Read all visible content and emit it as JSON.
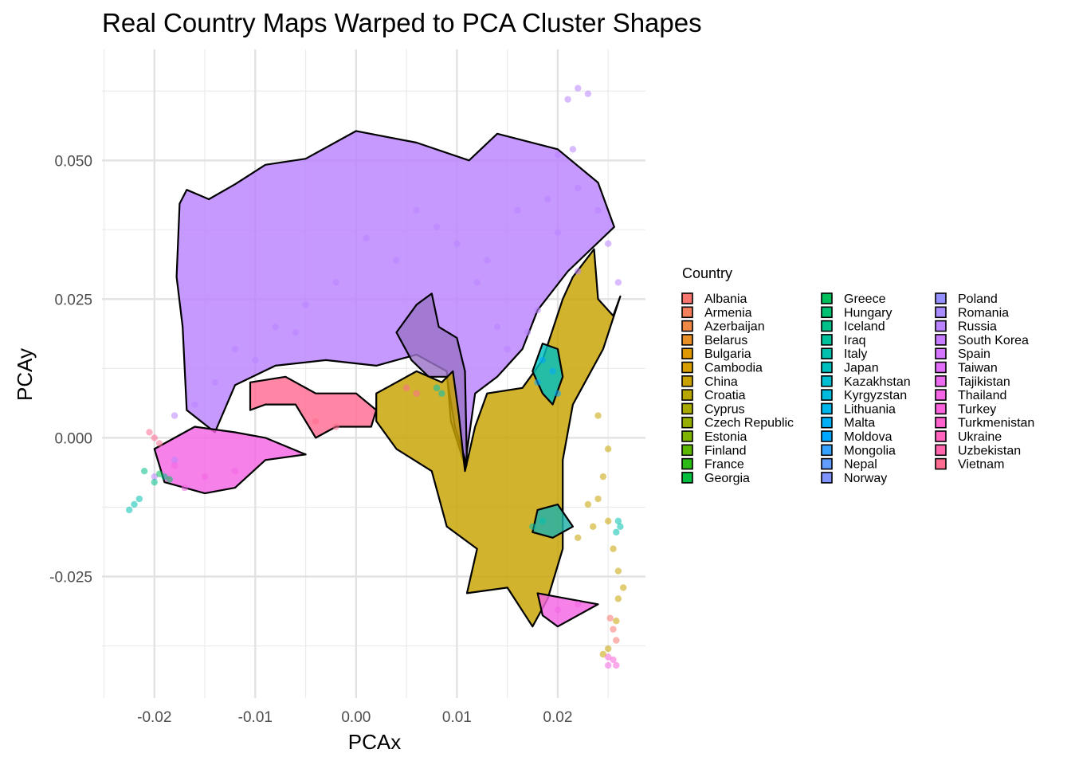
{
  "chart_data": {
    "type": "scatter",
    "title": "Real Country Maps Warped to PCA Cluster Shapes",
    "xlabel": "PCAx",
    "ylabel": "PCAy",
    "xlim": [
      -0.0252,
      0.0287
    ],
    "ylim": [
      -0.0469,
      0.07
    ],
    "x_ticks": [
      -0.02,
      -0.01,
      0.0,
      0.01,
      0.02
    ],
    "x_tick_labels": [
      "-0.02",
      "-0.01",
      "0.00",
      "0.01",
      "0.02"
    ],
    "y_ticks": [
      -0.025,
      0.0,
      0.025,
      0.05
    ],
    "y_tick_labels": [
      "-0.025",
      "0.000",
      "0.025",
      "0.050"
    ],
    "grid": true,
    "legend": {
      "title": "Country",
      "placement": "right",
      "columns": 3,
      "entries": [
        {
          "name": "Albania",
          "color": "#F8766D"
        },
        {
          "name": "Armenia",
          "color": "#F47F5B"
        },
        {
          "name": "Azerbaijan",
          "color": "#EF8844"
        },
        {
          "name": "Belarus",
          "color": "#E89026"
        },
        {
          "name": "Bulgaria",
          "color": "#E09800"
        },
        {
          "name": "Cambodia",
          "color": "#D89F00"
        },
        {
          "name": "China",
          "color": "#C7A200"
        },
        {
          "name": "Croatia",
          "color": "#B8A600"
        },
        {
          "name": "Cyprus",
          "color": "#A9AA00"
        },
        {
          "name": "Czech Republic",
          "color": "#96AE00"
        },
        {
          "name": "Estonia",
          "color": "#7EB300"
        },
        {
          "name": "Finland",
          "color": "#5CB700"
        },
        {
          "name": "France",
          "color": "#2BBA16"
        },
        {
          "name": "Georgia",
          "color": "#00BC3F"
        },
        {
          "name": "Greece",
          "color": "#00BE5A"
        },
        {
          "name": "Hungary",
          "color": "#00C073"
        },
        {
          "name": "Iceland",
          "color": "#00C089"
        },
        {
          "name": "Iraq",
          "color": "#00C19C"
        },
        {
          "name": "Italy",
          "color": "#00C0AE"
        },
        {
          "name": "Japan",
          "color": "#00BFBF"
        },
        {
          "name": "Kazakhstan",
          "color": "#00BECF"
        },
        {
          "name": "Kyrgyzstan",
          "color": "#00BBDD"
        },
        {
          "name": "Lithuania",
          "color": "#00B6EA"
        },
        {
          "name": "Malta",
          "color": "#00B0F6"
        },
        {
          "name": "Moldova",
          "color": "#00A8FF"
        },
        {
          "name": "Mongolia",
          "color": "#35A2FF"
        },
        {
          "name": "Nepal",
          "color": "#619CFF"
        },
        {
          "name": "Norway",
          "color": "#8094FF"
        },
        {
          "name": "Poland",
          "color": "#9590FF"
        },
        {
          "name": "Romania",
          "color": "#A88BFF"
        },
        {
          "name": "Russia",
          "color": "#B983FF"
        },
        {
          "name": "South Korea",
          "color": "#C77CFF"
        },
        {
          "name": "Spain",
          "color": "#D575FE"
        },
        {
          "name": "Taiwan",
          "color": "#E26EF7"
        },
        {
          "name": "Tajikistan",
          "color": "#EB6AEE"
        },
        {
          "name": "Thailand",
          "color": "#F365E4"
        },
        {
          "name": "Turkey",
          "color": "#F962DA"
        },
        {
          "name": "Turkmenistan",
          "color": "#FE61CC"
        },
        {
          "name": "Ukraine",
          "color": "#FF62BC"
        },
        {
          "name": "Uzbekistan",
          "color": "#FF65AC"
        },
        {
          "name": "Vietnam",
          "color": "#FF6C91"
        }
      ]
    },
    "regions": [
      {
        "country": "Russia",
        "color": "#B983FF",
        "points": [
          [
            -0.0175,
            0.0422
          ],
          [
            -0.0168,
            0.0447
          ],
          [
            -0.0146,
            0.043
          ],
          [
            -0.012,
            0.0457
          ],
          [
            -0.009,
            0.0492
          ],
          [
            -0.005,
            0.0503
          ],
          [
            0.0,
            0.0553
          ],
          [
            0.006,
            0.0532
          ],
          [
            0.0112,
            0.05
          ],
          [
            0.014,
            0.0548
          ],
          [
            0.02,
            0.052
          ],
          [
            0.024,
            0.046
          ],
          [
            0.0256,
            0.038
          ],
          [
            0.021,
            0.03
          ],
          [
            0.018,
            0.023
          ],
          [
            0.0165,
            0.016
          ],
          [
            0.014,
            0.011
          ],
          [
            0.0118,
            0.008
          ],
          [
            0.0108,
            -0.005
          ],
          [
            0.0094,
            0.003
          ],
          [
            0.009,
            0.012
          ],
          [
            0.006,
            0.015
          ],
          [
            0.002,
            0.013
          ],
          [
            -0.003,
            0.014
          ],
          [
            -0.008,
            0.013
          ],
          [
            -0.012,
            0.0095
          ],
          [
            -0.014,
            0.001
          ],
          [
            -0.0168,
            0.005
          ],
          [
            -0.0172,
            0.02
          ],
          [
            -0.0178,
            0.029
          ]
        ]
      },
      {
        "country": "Kazakhstan",
        "color": "#9B73C8",
        "points": [
          [
            0.004,
            0.019
          ],
          [
            0.006,
            0.024
          ],
          [
            0.0075,
            0.026
          ],
          [
            0.0082,
            0.02
          ],
          [
            0.01,
            0.018
          ],
          [
            0.0108,
            0.012
          ],
          [
            0.011,
            -0.005
          ],
          [
            0.0098,
            0.002
          ],
          [
            0.009,
            0.011
          ],
          [
            0.0072,
            0.011
          ],
          [
            0.0055,
            0.014
          ]
        ]
      },
      {
        "country": "China",
        "color": "#C7A200",
        "points": [
          [
            0.002,
            0.008
          ],
          [
            0.006,
            0.012
          ],
          [
            0.0085,
            0.01
          ],
          [
            0.0096,
            0.012
          ],
          [
            0.0102,
            0.004
          ],
          [
            0.0108,
            -0.006
          ],
          [
            0.0118,
            0.002
          ],
          [
            0.013,
            0.008
          ],
          [
            0.0165,
            0.009
          ],
          [
            0.0185,
            0.014
          ],
          [
            0.0205,
            0.025
          ],
          [
            0.0215,
            0.029
          ],
          [
            0.0236,
            0.034
          ],
          [
            0.024,
            0.025
          ],
          [
            0.0255,
            0.022
          ],
          [
            0.0262,
            0.0255
          ],
          [
            0.0245,
            0.016
          ],
          [
            0.023,
            0.011
          ],
          [
            0.0215,
            0.006
          ],
          [
            0.0205,
            -0.004
          ],
          [
            0.0205,
            -0.02
          ],
          [
            0.019,
            -0.029
          ],
          [
            0.0175,
            -0.034
          ],
          [
            0.015,
            -0.027
          ],
          [
            0.011,
            -0.028
          ],
          [
            0.012,
            -0.02
          ],
          [
            0.009,
            -0.016
          ],
          [
            0.0075,
            -0.006
          ],
          [
            0.004,
            -0.002
          ],
          [
            0.002,
            0.003
          ]
        ]
      },
      {
        "country": "Turkey",
        "color": "#FF6C91",
        "points": [
          [
            -0.0105,
            0.01
          ],
          [
            -0.007,
            0.011
          ],
          [
            -0.004,
            0.008
          ],
          [
            0.0,
            0.008
          ],
          [
            0.002,
            0.005
          ],
          [
            0.0015,
            0.002
          ],
          [
            -0.002,
            0.002
          ],
          [
            -0.004,
            0.0
          ],
          [
            -0.006,
            0.006
          ],
          [
            -0.009,
            0.006
          ],
          [
            -0.0105,
            0.005
          ]
        ]
      },
      {
        "country": "Spain",
        "color": "#F365E4",
        "points": [
          [
            -0.02,
            -0.002
          ],
          [
            -0.016,
            0.002
          ],
          [
            -0.012,
            0.001
          ],
          [
            -0.009,
            0.0
          ],
          [
            -0.005,
            -0.003
          ],
          [
            -0.009,
            -0.004
          ],
          [
            -0.012,
            -0.009
          ],
          [
            -0.015,
            -0.01
          ],
          [
            -0.019,
            -0.008
          ]
        ]
      },
      {
        "country": "Italy",
        "color": "#00BFBF",
        "points": [
          [
            0.0175,
            0.012
          ],
          [
            0.0185,
            0.017
          ],
          [
            0.02,
            0.016
          ],
          [
            0.0205,
            0.011
          ],
          [
            0.0195,
            0.006
          ],
          [
            0.0185,
            0.008
          ]
        ]
      },
      {
        "country": "Japan",
        "color": "#20B2AA",
        "points": [
          [
            0.018,
            -0.013
          ],
          [
            0.02,
            -0.012
          ],
          [
            0.0215,
            -0.016
          ],
          [
            0.0195,
            -0.018
          ],
          [
            0.0175,
            -0.017
          ]
        ]
      },
      {
        "country": "Thailand",
        "color": "#F365E4",
        "points": [
          [
            0.018,
            -0.028
          ],
          [
            0.021,
            -0.029
          ],
          [
            0.024,
            -0.03
          ],
          [
            0.02,
            -0.034
          ],
          [
            0.0185,
            -0.032
          ]
        ]
      }
    ],
    "series": [
      {
        "name": "Russia",
        "color": "#B983FF",
        "points": [
          [
            0.022,
            0.063
          ],
          [
            0.021,
            0.061
          ],
          [
            0.023,
            0.062
          ],
          [
            0.0215,
            0.052
          ],
          [
            0.02,
            0.051
          ],
          [
            0.022,
            0.045
          ],
          [
            0.019,
            0.043
          ],
          [
            0.024,
            0.041
          ],
          [
            0.025,
            0.035
          ],
          [
            0.022,
            0.03
          ],
          [
            0.026,
            0.028
          ],
          [
            0.017,
            0.019
          ],
          [
            0.014,
            0.02
          ],
          [
            0.01,
            0.035
          ],
          [
            0.008,
            0.038
          ],
          [
            0.004,
            0.032
          ],
          [
            -0.002,
            0.028
          ],
          [
            -0.005,
            0.024
          ],
          [
            -0.008,
            0.02
          ],
          [
            -0.012,
            0.016
          ],
          [
            -0.016,
            0.006
          ],
          [
            -0.018,
            0.004
          ],
          [
            0.013,
            0.032
          ],
          [
            0.016,
            0.041
          ],
          [
            0.02,
            0.037
          ],
          [
            0.018,
            0.023
          ],
          [
            0.015,
            0.016
          ],
          [
            0.012,
            0.028
          ],
          [
            0.006,
            0.041
          ],
          [
            0.001,
            0.036
          ],
          [
            -0.006,
            0.019
          ],
          [
            -0.01,
            0.014
          ],
          [
            -0.014,
            0.01
          ],
          [
            -0.018,
            -0.004
          ],
          [
            -0.02,
            -0.007
          ]
        ]
      },
      {
        "name": "China",
        "color": "#C7A200",
        "points": [
          [
            0.024,
            0.004
          ],
          [
            0.025,
            -0.002
          ],
          [
            0.0245,
            -0.007
          ],
          [
            0.024,
            -0.011
          ],
          [
            0.025,
            -0.015
          ],
          [
            0.0255,
            -0.02
          ],
          [
            0.026,
            -0.024
          ],
          [
            0.026,
            -0.029
          ],
          [
            0.0258,
            -0.033
          ],
          [
            0.025,
            -0.038
          ],
          [
            0.0245,
            -0.039
          ],
          [
            0.0235,
            -0.016
          ],
          [
            0.023,
            -0.012
          ],
          [
            0.022,
            -0.018
          ],
          [
            0.0265,
            -0.027
          ]
        ]
      },
      {
        "name": "Albania",
        "color": "#F8766D",
        "points": [
          [
            0.0252,
            -0.0325
          ],
          [
            0.0255,
            -0.0345
          ],
          [
            0.0258,
            -0.0365
          ]
        ]
      },
      {
        "name": "Turkey",
        "color": "#F962DA",
        "points": [
          [
            0.0255,
            -0.04
          ],
          [
            0.0258,
            -0.041
          ],
          [
            0.025,
            -0.0395
          ]
        ]
      },
      {
        "name": "Italy",
        "color": "#00C0AE",
        "points": [
          [
            0.026,
            -0.015
          ],
          [
            0.0262,
            -0.016
          ],
          [
            0.0258,
            -0.017
          ],
          [
            0.0185,
            -0.015
          ],
          [
            0.0175,
            -0.016
          ],
          [
            -0.022,
            -0.012
          ],
          [
            -0.0225,
            -0.013
          ],
          [
            -0.0215,
            -0.011
          ],
          [
            0.008,
            0.009
          ],
          [
            0.0085,
            0.008
          ]
        ]
      },
      {
        "name": "Mongolia",
        "color": "#00A8FF",
        "points": [
          [
            0.0185,
            0.014
          ],
          [
            0.0195,
            0.012
          ],
          [
            0.018,
            0.01
          ],
          [
            0.02,
            0.008
          ]
        ]
      },
      {
        "name": "Vietnam",
        "color": "#FF6C91",
        "points": [
          [
            -0.02,
            0.0
          ],
          [
            -0.0195,
            -0.001
          ],
          [
            -0.0205,
            0.001
          ],
          [
            -0.004,
            0.003
          ],
          [
            -0.002,
            0.002
          ],
          [
            0.006,
            0.008
          ],
          [
            0.005,
            0.009
          ]
        ]
      },
      {
        "name": "Thailand",
        "color": "#F365E4",
        "points": [
          [
            -0.018,
            -0.005
          ],
          [
            -0.015,
            -0.007
          ],
          [
            -0.012,
            -0.006
          ],
          [
            -0.017,
            -0.009
          ],
          [
            0.02,
            -0.031
          ],
          [
            0.022,
            -0.03
          ],
          [
            0.025,
            -0.041
          ]
        ]
      },
      {
        "name": "Iceland",
        "color": "#00C089",
        "points": [
          [
            -0.02,
            -0.008
          ],
          [
            -0.019,
            -0.007
          ],
          [
            -0.021,
            -0.006
          ]
        ]
      },
      {
        "name": "Greece",
        "color": "#00BE5A",
        "points": [
          [
            -0.0195,
            -0.0065
          ],
          [
            -0.0185,
            -0.0075
          ]
        ]
      }
    ]
  }
}
